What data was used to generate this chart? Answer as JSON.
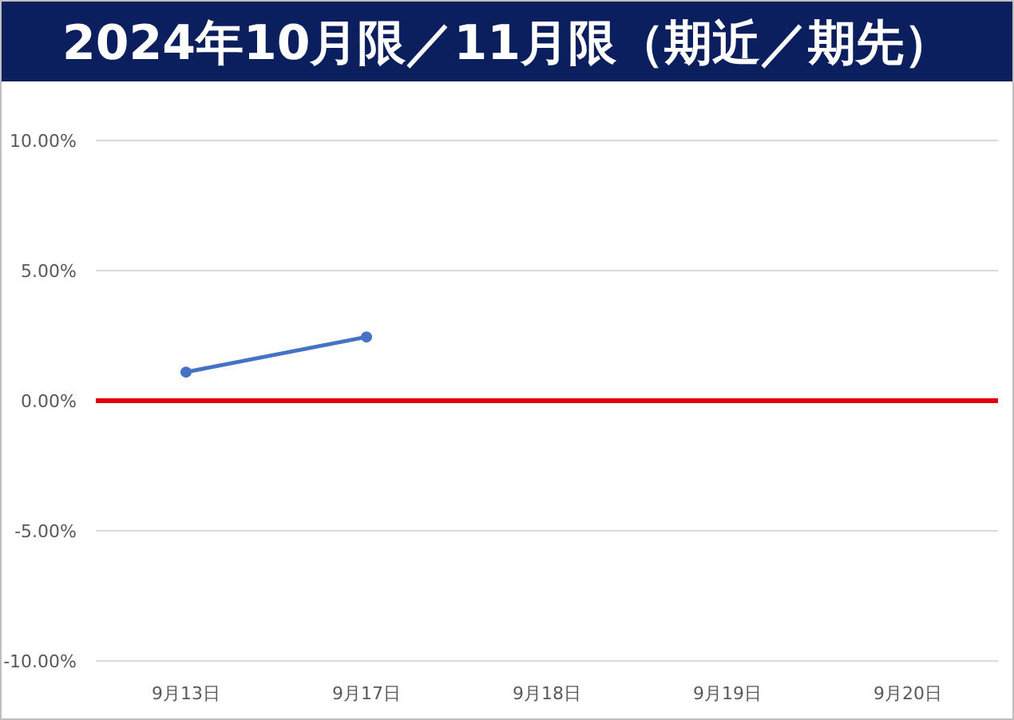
{
  "chart_data": {
    "type": "line",
    "title": "2024年10月限／11月限（期近／期先）",
    "categories": [
      "9月13日",
      "9月17日",
      "9月18日",
      "9月19日",
      "9月20日"
    ],
    "series": [
      {
        "color": "#4472c4",
        "values": [
          1.1,
          2.45,
          null,
          null,
          null
        ]
      }
    ],
    "ylim": [
      -10,
      10
    ],
    "yticks": [
      {
        "value": -10,
        "label": "-10.00%"
      },
      {
        "value": -5,
        "label": "-5.00%"
      },
      {
        "value": 0,
        "label": "0.00%"
      },
      {
        "value": 5,
        "label": "5.00%"
      },
      {
        "value": 10,
        "label": "10.00%"
      }
    ],
    "grid": "y",
    "marker": "circle",
    "line_style": "solid",
    "ref_lines": [
      {
        "axis": "y",
        "value": 0,
        "color": "#e00000"
      }
    ]
  }
}
